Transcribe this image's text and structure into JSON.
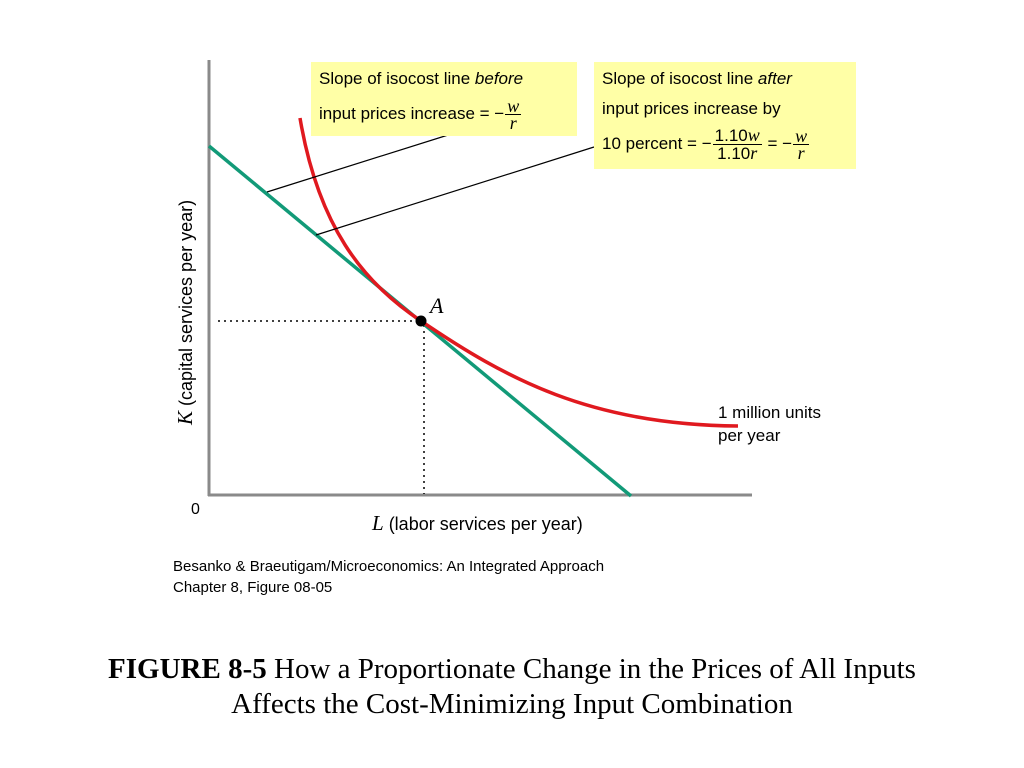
{
  "diagram": {
    "origin_label": "0",
    "point_label": "A",
    "x_axis": {
      "variable": "L",
      "text": " (labor services per year)"
    },
    "y_axis": {
      "variable": "K",
      "text": " (capital services per year)"
    },
    "isoquant_label": [
      "1 million units",
      "per year"
    ],
    "callout_before": {
      "line1_text": "Slope of isocost line ",
      "line1_emph": "before",
      "line2_text": "input prices increase = −",
      "frac_num": "w",
      "frac_den": "r"
    },
    "callout_after": {
      "line1_text": "Slope of isocost line ",
      "line1_emph": "after",
      "line2_text": "input prices increase by",
      "line3_text": "10 percent = −",
      "frac1_num_coef": "1.10",
      "frac1_num_var": "w",
      "frac1_den_coef": "1.10",
      "frac1_den_var": "r",
      "equals": " = −",
      "frac2_num": "w",
      "frac2_den": "r"
    },
    "colors": {
      "isoquant": "#e0191f",
      "isocost": "#129a78",
      "axes": "#8a8a8a",
      "callout_bg": "#ffffa6"
    }
  },
  "credit": {
    "line1": "Besanko & Braeutigam/Microeconomics: An Integrated Approach",
    "line2": "Chapter 8, Figure 08-05"
  },
  "caption": {
    "figure_number": "FIGURE 8-5",
    "line1_rest": " How a Proportionate Change in the Prices of All Inputs",
    "line2": "Affects the Cost-Minimizing Input Combination"
  }
}
